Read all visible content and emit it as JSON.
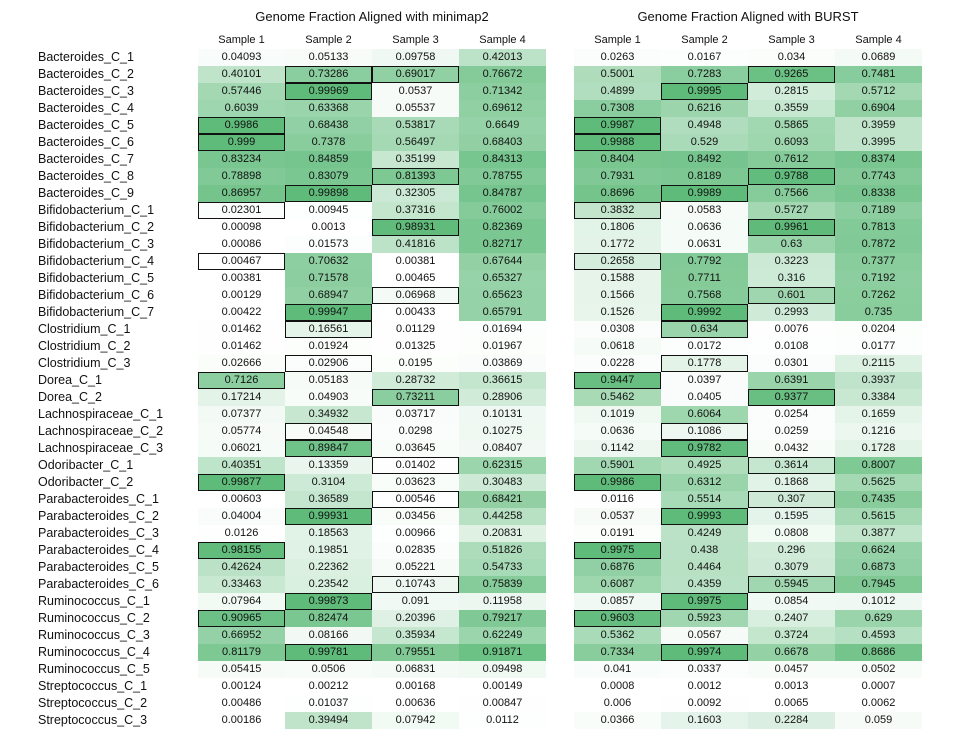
{
  "chart_data": {
    "type": "heatmap",
    "colormap": {
      "low": "#ffffff",
      "high": "#5fbb7a"
    },
    "highlight_border_color": "#111111",
    "rows": [
      "Bacteroides_C_1",
      "Bacteroides_C_2",
      "Bacteroides_C_3",
      "Bacteroides_C_4",
      "Bacteroides_C_5",
      "Bacteroides_C_6",
      "Bacteroides_C_7",
      "Bacteroides_C_8",
      "Bacteroides_C_9",
      "Bifidobacterium_C_1",
      "Bifidobacterium_C_2",
      "Bifidobacterium_C_3",
      "Bifidobacterium_C_4",
      "Bifidobacterium_C_5",
      "Bifidobacterium_C_6",
      "Bifidobacterium_C_7",
      "Clostridium_C_1",
      "Clostridium_C_2",
      "Clostridium_C_3",
      "Dorea_C_1",
      "Dorea_C_2",
      "Lachnospiraceae_C_1",
      "Lachnospiraceae_C_2",
      "Lachnospiraceae_C_3",
      "Odoribacter_C_1",
      "Odoribacter_C_2",
      "Parabacteroides_C_1",
      "Parabacteroides_C_2",
      "Parabacteroides_C_3",
      "Parabacteroides_C_4",
      "Parabacteroides_C_5",
      "Parabacteroides_C_6",
      "Ruminococcus_C_1",
      "Ruminococcus_C_2",
      "Ruminococcus_C_3",
      "Ruminococcus_C_4",
      "Ruminococcus_C_5",
      "Streptococcus_C_1",
      "Streptococcus_C_2",
      "Streptococcus_C_3"
    ],
    "panels": [
      {
        "title": "Genome Fraction Aligned with minimap2",
        "columns": [
          "Sample 1",
          "Sample 2",
          "Sample 3",
          "Sample 4"
        ],
        "values": [
          [
            "0.04093",
            "0.05133",
            "0.09758",
            "0.42013"
          ],
          [
            "0.40101",
            "0.73286",
            "0.69017",
            "0.76672"
          ],
          [
            "0.57446",
            "0.99969",
            "0.0537",
            "0.71342"
          ],
          [
            "0.6039",
            "0.63368",
            "0.05537",
            "0.69612"
          ],
          [
            "0.9986",
            "0.68438",
            "0.53817",
            "0.6649"
          ],
          [
            "0.999",
            "0.7378",
            "0.56497",
            "0.68403"
          ],
          [
            "0.83234",
            "0.84859",
            "0.35199",
            "0.84313"
          ],
          [
            "0.78898",
            "0.83079",
            "0.81393",
            "0.78755"
          ],
          [
            "0.86957",
            "0.99898",
            "0.32305",
            "0.84787"
          ],
          [
            "0.02301",
            "0.00945",
            "0.37316",
            "0.76002"
          ],
          [
            "0.00098",
            "0.0013",
            "0.98931",
            "0.82369"
          ],
          [
            "0.00086",
            "0.01573",
            "0.41816",
            "0.82717"
          ],
          [
            "0.00467",
            "0.70632",
            "0.00381",
            "0.67644"
          ],
          [
            "0.00381",
            "0.71578",
            "0.00465",
            "0.65327"
          ],
          [
            "0.00129",
            "0.68947",
            "0.06968",
            "0.65623"
          ],
          [
            "0.00422",
            "0.99947",
            "0.00433",
            "0.65791"
          ],
          [
            "0.01462",
            "0.16561",
            "0.01129",
            "0.01694"
          ],
          [
            "0.01462",
            "0.01924",
            "0.01325",
            "0.01967"
          ],
          [
            "0.02666",
            "0.02906",
            "0.0195",
            "0.03869"
          ],
          [
            "0.7126",
            "0.05183",
            "0.28732",
            "0.36615"
          ],
          [
            "0.17214",
            "0.04903",
            "0.73211",
            "0.28906"
          ],
          [
            "0.07377",
            "0.34932",
            "0.03717",
            "0.10131"
          ],
          [
            "0.05774",
            "0.04548",
            "0.0298",
            "0.10275"
          ],
          [
            "0.06021",
            "0.89847",
            "0.03645",
            "0.08407"
          ],
          [
            "0.40351",
            "0.13359",
            "0.01402",
            "0.62315"
          ],
          [
            "0.99877",
            "0.3104",
            "0.03623",
            "0.30483"
          ],
          [
            "0.00603",
            "0.36589",
            "0.00546",
            "0.68421"
          ],
          [
            "0.04004",
            "0.99931",
            "0.03456",
            "0.44258"
          ],
          [
            "0.0126",
            "0.18563",
            "0.00966",
            "0.20831"
          ],
          [
            "0.98155",
            "0.19851",
            "0.02835",
            "0.51826"
          ],
          [
            "0.42624",
            "0.22362",
            "0.05221",
            "0.54733"
          ],
          [
            "0.33463",
            "0.23542",
            "0.10743",
            "0.75839"
          ],
          [
            "0.07964",
            "0.99873",
            "0.091",
            "0.11958"
          ],
          [
            "0.90965",
            "0.82474",
            "0.20396",
            "0.79217"
          ],
          [
            "0.66952",
            "0.08166",
            "0.35934",
            "0.62249"
          ],
          [
            "0.81179",
            "0.99781",
            "0.79551",
            "0.91871"
          ],
          [
            "0.05415",
            "0.0506",
            "0.06831",
            "0.09498"
          ],
          [
            "0.00124",
            "0.00212",
            "0.00168",
            "0.00149"
          ],
          [
            "0.00486",
            "0.01037",
            "0.00636",
            "0.00847"
          ],
          [
            "0.00186",
            "0.39494",
            "0.07942",
            "0.0112"
          ]
        ],
        "highlighted": [
          [
            4,
            0
          ],
          [
            5,
            0
          ],
          [
            9,
            0
          ],
          [
            12,
            0
          ],
          [
            19,
            0
          ],
          [
            25,
            0
          ],
          [
            29,
            0
          ],
          [
            33,
            0
          ],
          [
            1,
            1
          ],
          [
            2,
            1
          ],
          [
            8,
            1
          ],
          [
            15,
            1
          ],
          [
            16,
            1
          ],
          [
            18,
            1
          ],
          [
            22,
            1
          ],
          [
            23,
            1
          ],
          [
            27,
            1
          ],
          [
            32,
            1
          ],
          [
            35,
            1
          ],
          [
            1,
            2
          ],
          [
            7,
            2
          ],
          [
            10,
            2
          ],
          [
            14,
            2
          ],
          [
            20,
            2
          ],
          [
            24,
            2
          ],
          [
            26,
            2
          ],
          [
            31,
            2
          ]
        ]
      },
      {
        "title": "Genome Fraction Aligned with BURST",
        "columns": [
          "Sample 1",
          "Sample 2",
          "Sample 3",
          "Sample 4"
        ],
        "values": [
          [
            "0.0263",
            "0.0167",
            "0.034",
            "0.0689"
          ],
          [
            "0.5001",
            "0.7283",
            "0.9265",
            "0.7481"
          ],
          [
            "0.4899",
            "0.9995",
            "0.2815",
            "0.5712"
          ],
          [
            "0.7308",
            "0.6216",
            "0.3559",
            "0.6904"
          ],
          [
            "0.9987",
            "0.4948",
            "0.5865",
            "0.3959"
          ],
          [
            "0.9988",
            "0.529",
            "0.6093",
            "0.3995"
          ],
          [
            "0.8404",
            "0.8492",
            "0.7612",
            "0.8374"
          ],
          [
            "0.7931",
            "0.8189",
            "0.9788",
            "0.7743"
          ],
          [
            "0.8696",
            "0.9989",
            "0.7566",
            "0.8338"
          ],
          [
            "0.3832",
            "0.0583",
            "0.5727",
            "0.7189"
          ],
          [
            "0.1806",
            "0.0636",
            "0.9961",
            "0.7813"
          ],
          [
            "0.1772",
            "0.0631",
            "0.63",
            "0.7872"
          ],
          [
            "0.2658",
            "0.7792",
            "0.3223",
            "0.7377"
          ],
          [
            "0.1588",
            "0.7711",
            "0.316",
            "0.7192"
          ],
          [
            "0.1566",
            "0.7568",
            "0.601",
            "0.7262"
          ],
          [
            "0.1526",
            "0.9992",
            "0.2993",
            "0.735"
          ],
          [
            "0.0308",
            "0.634",
            "0.0076",
            "0.0204"
          ],
          [
            "0.0618",
            "0.0172",
            "0.0108",
            "0.0177"
          ],
          [
            "0.0228",
            "0.1778",
            "0.0301",
            "0.2115"
          ],
          [
            "0.9447",
            "0.0397",
            "0.6391",
            "0.3937"
          ],
          [
            "0.5462",
            "0.0405",
            "0.9377",
            "0.3384"
          ],
          [
            "0.1019",
            "0.6064",
            "0.0254",
            "0.1659"
          ],
          [
            "0.0636",
            "0.1086",
            "0.0259",
            "0.1216"
          ],
          [
            "0.1142",
            "0.9782",
            "0.0432",
            "0.1728"
          ],
          [
            "0.5901",
            "0.4925",
            "0.3614",
            "0.8007"
          ],
          [
            "0.9986",
            "0.6312",
            "0.1868",
            "0.5625"
          ],
          [
            "0.0116",
            "0.5514",
            "0.307",
            "0.7435"
          ],
          [
            "0.0537",
            "0.9993",
            "0.1595",
            "0.5615"
          ],
          [
            "0.0191",
            "0.4249",
            "0.0808",
            "0.3877"
          ],
          [
            "0.9975",
            "0.438",
            "0.296",
            "0.6624"
          ],
          [
            "0.6876",
            "0.4464",
            "0.3079",
            "0.6873"
          ],
          [
            "0.6087",
            "0.4359",
            "0.5945",
            "0.7945"
          ],
          [
            "0.0857",
            "0.9975",
            "0.0854",
            "0.1012"
          ],
          [
            "0.9603",
            "0.5923",
            "0.2407",
            "0.629"
          ],
          [
            "0.5362",
            "0.0567",
            "0.3724",
            "0.4593"
          ],
          [
            "0.7334",
            "0.9974",
            "0.6678",
            "0.8686"
          ],
          [
            "0.041",
            "0.0337",
            "0.0457",
            "0.0502"
          ],
          [
            "0.0008",
            "0.0012",
            "0.0013",
            "0.0007"
          ],
          [
            "0.006",
            "0.0092",
            "0.0065",
            "0.0062"
          ],
          [
            "0.0366",
            "0.1603",
            "0.2284",
            "0.059"
          ]
        ],
        "highlighted": [
          [
            4,
            0
          ],
          [
            5,
            0
          ],
          [
            9,
            0
          ],
          [
            12,
            0
          ],
          [
            19,
            0
          ],
          [
            25,
            0
          ],
          [
            29,
            0
          ],
          [
            33,
            0
          ],
          [
            2,
            1
          ],
          [
            8,
            1
          ],
          [
            15,
            1
          ],
          [
            16,
            1
          ],
          [
            18,
            1
          ],
          [
            22,
            1
          ],
          [
            23,
            1
          ],
          [
            27,
            1
          ],
          [
            32,
            1
          ],
          [
            35,
            1
          ],
          [
            1,
            2
          ],
          [
            7,
            2
          ],
          [
            10,
            2
          ],
          [
            14,
            2
          ],
          [
            20,
            2
          ],
          [
            24,
            2
          ],
          [
            26,
            2
          ],
          [
            31,
            2
          ]
        ]
      }
    ]
  }
}
